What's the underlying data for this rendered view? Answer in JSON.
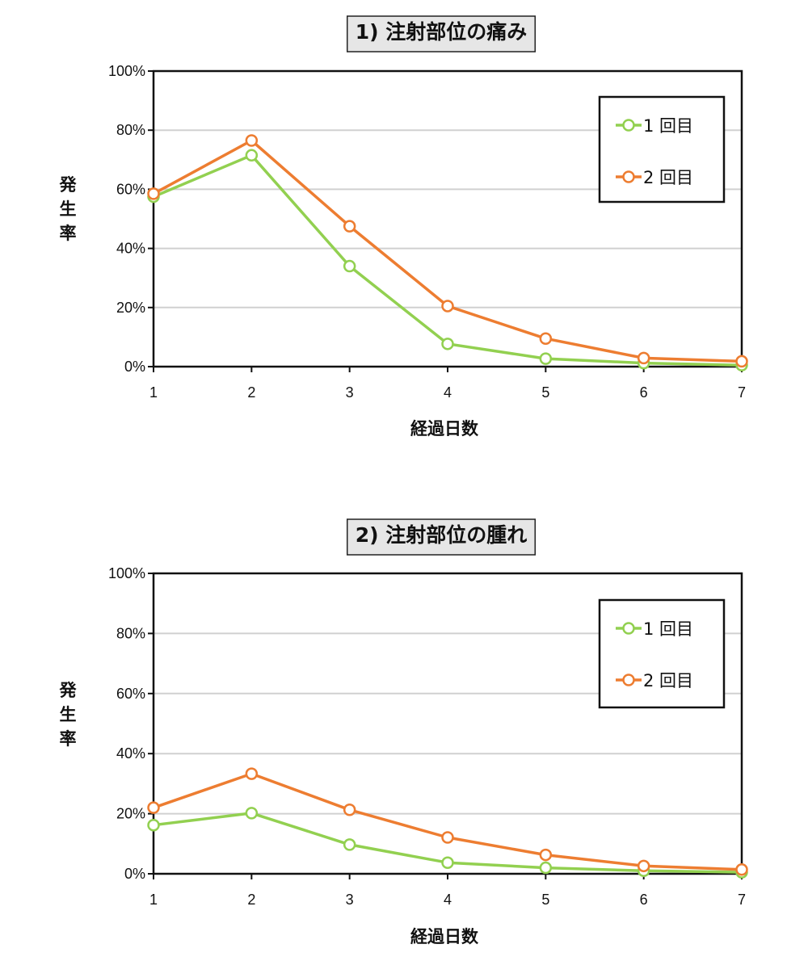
{
  "chart_data": [
    {
      "type": "line",
      "title": "1) 注射部位の痛み",
      "xlabel": "経過日数",
      "ylabel": "発生率",
      "x": [
        1,
        2,
        3,
        4,
        5,
        6,
        7
      ],
      "x_ticks": [
        "1",
        "2",
        "3",
        "4",
        "5",
        "6",
        "7"
      ],
      "ylim": [
        0,
        100
      ],
      "y_ticks": [
        "0%",
        "20%",
        "40%",
        "60%",
        "80%",
        "100%"
      ],
      "grid": true,
      "legend_position": "top-right",
      "series": [
        {
          "name": "1 回目",
          "color": "#92d050",
          "values": [
            57.5,
            71.5,
            34,
            7.7,
            2.7,
            1.2,
            0.5
          ]
        },
        {
          "name": "2 回目",
          "color": "#ed7d31",
          "values": [
            58.5,
            76.5,
            47.5,
            20.5,
            9.5,
            2.9,
            1.8
          ]
        }
      ]
    },
    {
      "type": "line",
      "title": "2) 注射部位の腫れ",
      "xlabel": "経過日数",
      "ylabel": "発生率",
      "x": [
        1,
        2,
        3,
        4,
        5,
        6,
        7
      ],
      "x_ticks": [
        "1",
        "2",
        "3",
        "4",
        "5",
        "6",
        "7"
      ],
      "ylim": [
        0,
        100
      ],
      "y_ticks": [
        "0%",
        "20%",
        "40%",
        "60%",
        "80%",
        "100%"
      ],
      "grid": true,
      "legend_position": "top-right",
      "series": [
        {
          "name": "1 回目",
          "color": "#92d050",
          "values": [
            16.2,
            20.2,
            9.7,
            3.7,
            2.0,
            1.0,
            0.5
          ]
        },
        {
          "name": "2 回目",
          "color": "#ed7d31",
          "values": [
            22,
            33.3,
            21.3,
            12.1,
            6.3,
            2.6,
            1.4
          ]
        }
      ]
    }
  ]
}
